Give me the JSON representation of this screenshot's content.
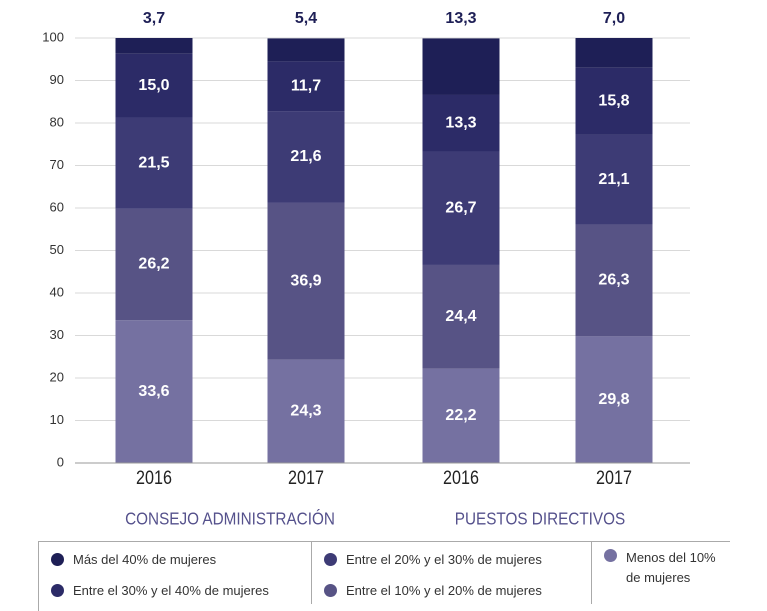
{
  "chart_data": {
    "type": "stacked_bar",
    "categories": [
      "2016",
      "2017",
      "2016",
      "2017"
    ],
    "groups": [
      {
        "label": "CONSEJO ADMINISTRACIÓN"
      },
      {
        "label": "PUESTOS DIRECTIVOS"
      }
    ],
    "series": [
      {
        "name": "Más del 40% de mujeres",
        "color": "#1e1f56",
        "values": [
          3.7,
          5.4,
          13.3,
          7.0
        ],
        "value_labels": [
          "3,7",
          "5,4",
          "13,3",
          "7,0"
        ]
      },
      {
        "name": "Entre el 30% y el 40% de mujeres",
        "color": "#2c2b67",
        "values": [
          15.0,
          11.7,
          13.3,
          15.8
        ],
        "value_labels": [
          "15,0",
          "11,7",
          "13,3",
          "15,8"
        ]
      },
      {
        "name": "Entre el 20% y el 30% de mujeres",
        "color": "#3d3b75",
        "values": [
          21.5,
          21.6,
          26.7,
          21.1
        ],
        "value_labels": [
          "21,5",
          "21,6",
          "26,7",
          "21,1"
        ]
      },
      {
        "name": "Entre el 10% y el 20% de mujeres",
        "color": "#575385",
        "values": [
          26.2,
          36.9,
          24.4,
          26.3
        ],
        "value_labels": [
          "26,2",
          "36,9",
          "24,4",
          "26,3"
        ]
      },
      {
        "name": "Menos del 10% de mujeres",
        "color": "#7571a1",
        "values": [
          33.6,
          24.3,
          22.2,
          29.8
        ],
        "value_labels": [
          "33,6",
          "24,3",
          "22,2",
          "29,8"
        ]
      }
    ],
    "ylim": [
      0,
      100
    ],
    "yticks": [
      0,
      10,
      20,
      30,
      40,
      50,
      60,
      70,
      80,
      90,
      100
    ],
    "grid": true
  }
}
